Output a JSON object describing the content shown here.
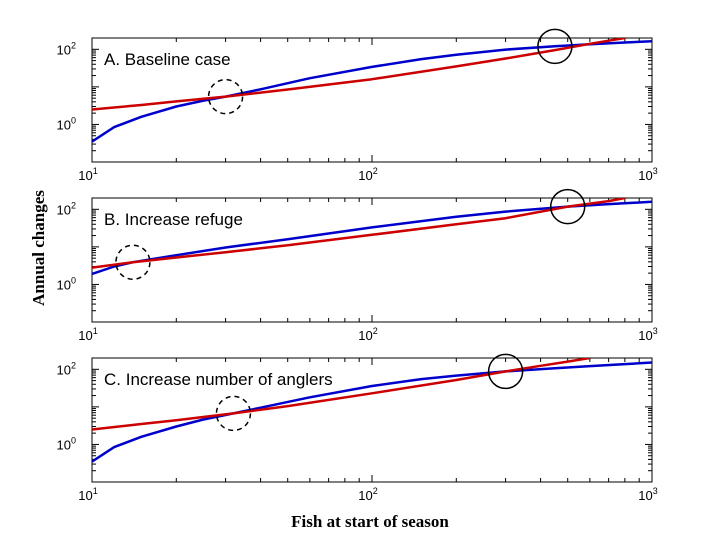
{
  "figure": {
    "xlabel": "Fish at start of season",
    "ylabel": "Annual changes"
  },
  "chart_data": [
    {
      "type": "line",
      "title": "A.  Baseline case",
      "xscale": "log",
      "yscale": "log",
      "xlim": [
        10,
        1000
      ],
      "ylim": [
        0.1,
        200
      ],
      "xticks": [
        {
          "base": "10",
          "exp": "1",
          "value": 10
        },
        {
          "base": "10",
          "exp": "2",
          "value": 100
        },
        {
          "base": "10",
          "exp": "3",
          "value": 1000
        }
      ],
      "yticks": [
        {
          "base": "10",
          "exp": "0",
          "value": 1
        },
        {
          "base": "10",
          "exp": "2",
          "value": 100
        }
      ],
      "series": [
        {
          "color": "#0000cc",
          "x": [
            10,
            12,
            15,
            20,
            25,
            30,
            40,
            60,
            100,
            150,
            200,
            300,
            450,
            600,
            800,
            1000
          ],
          "y": [
            0.35,
            0.85,
            1.6,
            3.0,
            4.3,
            5.5,
            8.6,
            17,
            34,
            55,
            72,
            98,
            120,
            136,
            152,
            163
          ]
        },
        {
          "color": "#cc0000",
          "x": [
            10,
            15,
            20,
            30,
            50,
            100,
            200,
            300,
            450,
            600,
            700,
            800
          ],
          "y": [
            2.5,
            3.3,
            4.1,
            5.5,
            8.5,
            16,
            35,
            57,
            95,
            140,
            170,
            200
          ]
        }
      ],
      "markers": [
        {
          "style": "dashed",
          "x": 30,
          "y": 5.5
        },
        {
          "style": "solid",
          "x": 450,
          "y": 120
        }
      ]
    },
    {
      "type": "line",
      "title": "B.  Increase refuge",
      "xscale": "log",
      "yscale": "log",
      "xlim": [
        10,
        1000
      ],
      "ylim": [
        0.1,
        200
      ],
      "xticks": [
        {
          "base": "10",
          "exp": "1",
          "value": 10
        },
        {
          "base": "10",
          "exp": "2",
          "value": 100
        },
        {
          "base": "10",
          "exp": "3",
          "value": 1000
        }
      ],
      "yticks": [
        {
          "base": "10",
          "exp": "0",
          "value": 1
        },
        {
          "base": "10",
          "exp": "2",
          "value": 100
        }
      ],
      "series": [
        {
          "color": "#0000cc",
          "x": [
            10,
            12,
            14,
            20,
            30,
            50,
            100,
            200,
            300,
            500,
            700,
            1000
          ],
          "y": [
            1.9,
            3.0,
            3.9,
            6.0,
            9.6,
            16,
            33,
            63,
            87,
            118,
            138,
            158
          ]
        },
        {
          "color": "#cc0000",
          "x": [
            10,
            14,
            20,
            30,
            50,
            100,
            200,
            300,
            500,
            700,
            800
          ],
          "y": [
            2.8,
            3.9,
            5.2,
            7.2,
            11,
            21,
            40,
            58,
            118,
            165,
            200
          ]
        }
      ],
      "markers": [
        {
          "style": "dashed",
          "x": 14,
          "y": 3.9
        },
        {
          "style": "solid",
          "x": 500,
          "y": 118
        }
      ]
    },
    {
      "type": "line",
      "title": "C.  Increase number of anglers",
      "xscale": "log",
      "yscale": "log",
      "xlim": [
        10,
        1000
      ],
      "ylim": [
        0.1,
        200
      ],
      "xticks": [
        {
          "base": "10",
          "exp": "1",
          "value": 10
        },
        {
          "base": "10",
          "exp": "2",
          "value": 100
        },
        {
          "base": "10",
          "exp": "3",
          "value": 1000
        }
      ],
      "yticks": [
        {
          "base": "10",
          "exp": "0",
          "value": 1
        },
        {
          "base": "10",
          "exp": "2",
          "value": 100
        }
      ],
      "series": [
        {
          "color": "#0000cc",
          "x": [
            10,
            12,
            15,
            20,
            25,
            32,
            40,
            60,
            100,
            150,
            200,
            300,
            450,
            600,
            800,
            1000
          ],
          "y": [
            0.35,
            0.85,
            1.6,
            3.0,
            4.6,
            6.7,
            9.5,
            18,
            36,
            55,
            68,
            88,
            107,
            122,
            138,
            152
          ]
        },
        {
          "color": "#cc0000",
          "x": [
            10,
            15,
            20,
            32,
            50,
            100,
            200,
            300,
            400,
            500,
            600
          ],
          "y": [
            2.5,
            3.5,
            4.4,
            6.7,
            10.5,
            23,
            52,
            88,
            124,
            160,
            200
          ]
        }
      ],
      "markers": [
        {
          "style": "dashed",
          "x": 32,
          "y": 6.7
        },
        {
          "style": "solid",
          "x": 300,
          "y": 88
        }
      ]
    }
  ]
}
